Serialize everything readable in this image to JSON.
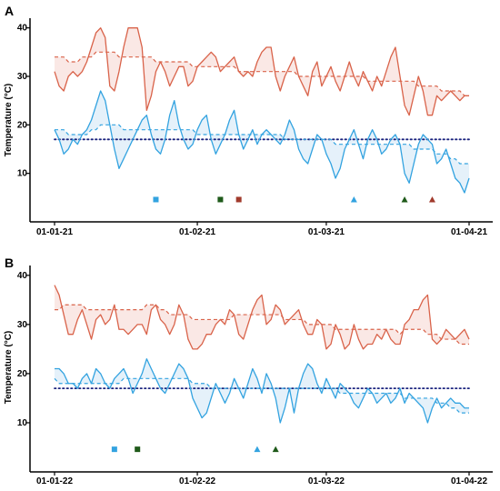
{
  "chart_data": [
    {
      "type": "line",
      "panel_label": "A",
      "ylabel": "Temperature (°C)",
      "ylim": [
        0,
        42
      ],
      "y_ticks": [
        10,
        20,
        30,
        40
      ],
      "x_tick_labels": [
        "01-01-21",
        "01-02-21",
        "01-03-21",
        "01-04-21"
      ],
      "x_tick_days": [
        0,
        31,
        59,
        90
      ],
      "x_range_days": [
        0,
        90
      ],
      "threshold": 17,
      "colors": {
        "max": "#d9634a",
        "min": "#33a3e0",
        "threshold": "#1a237e",
        "max_fill": "#f5d5cf",
        "min_fill": "#cfe6f5"
      },
      "series": [
        {
          "key": "max",
          "values": [
            31,
            28,
            27,
            30,
            31,
            30,
            31,
            33,
            36,
            39,
            40,
            38,
            28,
            27,
            31,
            36,
            40,
            40,
            40,
            36,
            23,
            26,
            31,
            33,
            31,
            28,
            30,
            32,
            32,
            28,
            29,
            32,
            33,
            34,
            35,
            34,
            31,
            32,
            33,
            34,
            31,
            30,
            31,
            30,
            33,
            35,
            36,
            36,
            30,
            27,
            30,
            32,
            34,
            30,
            28,
            26,
            31,
            33,
            28,
            30,
            32,
            29,
            27,
            30,
            33,
            30,
            28,
            31,
            29,
            27,
            30,
            28,
            31,
            34,
            36,
            30,
            24,
            22,
            26,
            30,
            27,
            22,
            22,
            26,
            25,
            26,
            27,
            26,
            25,
            26,
            26
          ]
        },
        {
          "key": "max_trend",
          "values": [
            34,
            34,
            34,
            33,
            33,
            33,
            34,
            34,
            34,
            35,
            35,
            35,
            35,
            35,
            34,
            34,
            34,
            34,
            34,
            34,
            34,
            34,
            33,
            33,
            33,
            33,
            33,
            33,
            33,
            33,
            32,
            32,
            32,
            32,
            32,
            32,
            32,
            32,
            32,
            32,
            31,
            31,
            31,
            31,
            31,
            31,
            31,
            31,
            31,
            31,
            31,
            31,
            31,
            30,
            30,
            30,
            30,
            30,
            30,
            30,
            30,
            30,
            30,
            30,
            30,
            30,
            30,
            30,
            29,
            29,
            29,
            29,
            29,
            29,
            29,
            29,
            29,
            29,
            29,
            28,
            28,
            28,
            28,
            28,
            27,
            27,
            27,
            27,
            27,
            26,
            26
          ]
        },
        {
          "key": "min",
          "values": [
            19,
            17,
            14,
            15,
            17,
            16,
            18,
            19,
            21,
            24,
            27,
            25,
            20,
            15,
            11,
            13,
            15,
            17,
            19,
            21,
            22,
            18,
            15,
            14,
            17,
            22,
            25,
            20,
            17,
            15,
            16,
            19,
            21,
            22,
            17,
            14,
            16,
            18,
            21,
            23,
            18,
            15,
            17,
            19,
            16,
            18,
            19,
            18,
            17,
            16,
            18,
            21,
            19,
            15,
            13,
            12,
            15,
            18,
            17,
            14,
            12,
            9,
            11,
            15,
            17,
            19,
            16,
            13,
            17,
            19,
            17,
            14,
            15,
            17,
            18,
            16,
            10,
            8,
            12,
            16,
            18,
            17,
            16,
            12,
            13,
            15,
            12,
            9,
            8,
            6,
            9
          ]
        },
        {
          "key": "min_trend",
          "values": [
            19,
            19,
            19,
            18,
            18,
            18,
            18,
            18,
            19,
            19,
            20,
            20,
            20,
            20,
            20,
            19,
            19,
            19,
            19,
            19,
            19,
            19,
            19,
            19,
            19,
            19,
            19,
            19,
            19,
            19,
            19,
            18,
            18,
            18,
            18,
            18,
            18,
            18,
            18,
            18,
            18,
            18,
            18,
            18,
            18,
            18,
            18,
            18,
            18,
            18,
            17,
            17,
            17,
            17,
            17,
            17,
            17,
            17,
            17,
            17,
            17,
            16,
            16,
            16,
            16,
            16,
            16,
            16,
            16,
            16,
            16,
            16,
            16,
            16,
            16,
            16,
            16,
            16,
            15,
            15,
            15,
            15,
            15,
            14,
            14,
            14,
            13,
            13,
            12,
            12,
            12
          ]
        }
      ],
      "markers": [
        {
          "day": 22,
          "y": 4.6,
          "shape": "square",
          "color": "#33a3e0"
        },
        {
          "day": 36,
          "y": 4.6,
          "shape": "square",
          "color": "#1f5a1a"
        },
        {
          "day": 40,
          "y": 4.6,
          "shape": "square",
          "color": "#a13a2c"
        },
        {
          "day": 65,
          "y": 4.6,
          "shape": "triangle",
          "color": "#33a3e0"
        },
        {
          "day": 76,
          "y": 4.6,
          "shape": "triangle",
          "color": "#1f5a1a"
        },
        {
          "day": 82,
          "y": 4.6,
          "shape": "triangle",
          "color": "#a13a2c"
        }
      ]
    },
    {
      "type": "line",
      "panel_label": "B",
      "ylabel": "Temperature (°C)",
      "ylim": [
        0,
        42
      ],
      "y_ticks": [
        10,
        20,
        30,
        40
      ],
      "x_tick_labels": [
        "01-01-22",
        "01-02-22",
        "01-03-22",
        "01-04-22"
      ],
      "x_tick_days": [
        0,
        31,
        59,
        90
      ],
      "x_range_days": [
        0,
        90
      ],
      "threshold": 17,
      "colors": {
        "max": "#d9634a",
        "min": "#33a3e0",
        "threshold": "#1a237e",
        "max_fill": "#f5d5cf",
        "min_fill": "#cfe6f5"
      },
      "series": [
        {
          "key": "max",
          "values": [
            38,
            36,
            32,
            28,
            28,
            31,
            33,
            30,
            27,
            31,
            32,
            30,
            31,
            34,
            29,
            29,
            28,
            29,
            30,
            30,
            28,
            33,
            34,
            31,
            30,
            28,
            30,
            34,
            32,
            27,
            25,
            25,
            26,
            28,
            28,
            30,
            31,
            30,
            33,
            32,
            28,
            27,
            30,
            33,
            35,
            36,
            30,
            31,
            34,
            33,
            30,
            31,
            32,
            33,
            30,
            28,
            28,
            31,
            30,
            25,
            26,
            30,
            28,
            25,
            26,
            30,
            27,
            25,
            26,
            26,
            28,
            27,
            29,
            27,
            26,
            26,
            30,
            31,
            33,
            33,
            35,
            36,
            27,
            26,
            27,
            29,
            28,
            27,
            28,
            29,
            27
          ]
        },
        {
          "key": "max_trend",
          "values": [
            33,
            33,
            34,
            34,
            34,
            34,
            34,
            33,
            33,
            33,
            33,
            33,
            33,
            33,
            33,
            33,
            33,
            33,
            33,
            33,
            34,
            34,
            34,
            33,
            33,
            32,
            32,
            32,
            32,
            32,
            31,
            31,
            31,
            31,
            31,
            31,
            31,
            31,
            31,
            32,
            32,
            32,
            32,
            32,
            32,
            32,
            32,
            32,
            32,
            32,
            31,
            31,
            31,
            31,
            31,
            30,
            30,
            30,
            30,
            30,
            30,
            29,
            29,
            29,
            29,
            29,
            29,
            29,
            29,
            29,
            29,
            29,
            29,
            29,
            29,
            28,
            29,
            29,
            29,
            29,
            29,
            28,
            28,
            28,
            27,
            27,
            27,
            27,
            26,
            26,
            26
          ]
        },
        {
          "key": "min",
          "values": [
            21,
            21,
            20,
            18,
            18,
            17,
            19,
            20,
            18,
            21,
            20,
            18,
            17,
            19,
            20,
            21,
            19,
            16,
            18,
            20,
            23,
            21,
            19,
            17,
            16,
            18,
            20,
            22,
            21,
            19,
            15,
            13,
            11,
            12,
            15,
            18,
            16,
            14,
            16,
            19,
            17,
            15,
            18,
            21,
            19,
            16,
            20,
            18,
            15,
            10,
            13,
            17,
            12,
            17,
            20,
            22,
            21,
            18,
            16,
            19,
            17,
            15,
            18,
            17,
            16,
            14,
            13,
            15,
            17,
            16,
            14,
            15,
            16,
            14,
            15,
            17,
            14,
            16,
            15,
            14,
            13,
            10,
            13,
            15,
            13,
            14,
            15,
            14,
            14,
            13,
            13
          ]
        },
        {
          "key": "min_trend",
          "values": [
            19,
            18,
            18,
            18,
            18,
            18,
            18,
            18,
            18,
            18,
            18,
            18,
            18,
            18,
            18,
            19,
            19,
            19,
            19,
            19,
            19,
            19,
            19,
            19,
            19,
            19,
            19,
            19,
            19,
            19,
            18,
            18,
            18,
            18,
            17,
            17,
            17,
            17,
            17,
            17,
            17,
            17,
            17,
            17,
            17,
            17,
            17,
            17,
            17,
            17,
            17,
            17,
            17,
            17,
            17,
            17,
            17,
            17,
            17,
            17,
            17,
            17,
            16,
            16,
            16,
            16,
            16,
            16,
            16,
            16,
            16,
            16,
            16,
            16,
            16,
            16,
            15,
            15,
            15,
            15,
            15,
            15,
            15,
            14,
            14,
            14,
            13,
            13,
            12,
            12,
            12
          ]
        }
      ],
      "markers": [
        {
          "day": 13,
          "y": 4.6,
          "shape": "square",
          "color": "#33a3e0"
        },
        {
          "day": 18,
          "y": 4.6,
          "shape": "square",
          "color": "#1f5a1a"
        },
        {
          "day": 44,
          "y": 4.6,
          "shape": "triangle",
          "color": "#33a3e0"
        },
        {
          "day": 48,
          "y": 4.6,
          "shape": "triangle",
          "color": "#1f5a1a"
        }
      ]
    }
  ]
}
